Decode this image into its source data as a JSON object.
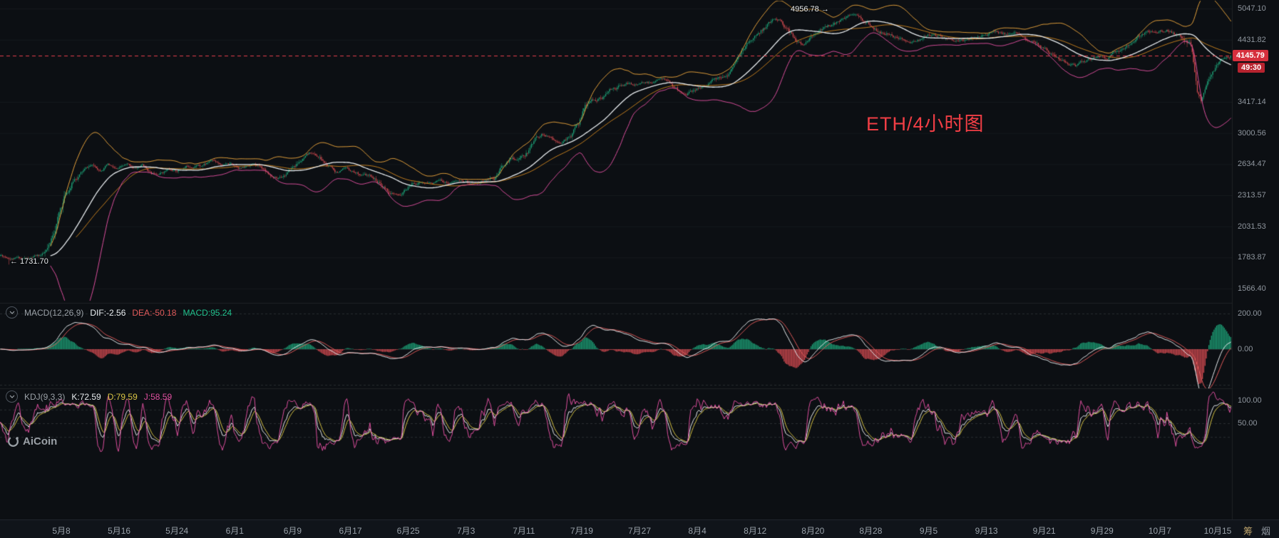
{
  "meta": {
    "watermark": "ETH/4小时图",
    "logo_text": "AiCoin"
  },
  "price_axis": {
    "labels": [
      "5047.10",
      "4431.82",
      "3417.14",
      "3000.56",
      "2634.47",
      "2313.57",
      "2031.53",
      "1783.87",
      "1566.40"
    ],
    "current_price": "4145.79",
    "countdown": "49:30"
  },
  "annotations": {
    "high_label": "4956.78 →",
    "low_label": "← 1731.70"
  },
  "indicators": {
    "macd": {
      "title": "MACD(12,26,9)",
      "dif": "DIF:-2.56",
      "dea": "DEA:-50.18",
      "macd": "MACD:95.24",
      "axis_labels": [
        "200.00",
        "0.00"
      ]
    },
    "kdj": {
      "title": "KDJ(9,3,3)",
      "k": "K:72.59",
      "d": "D:79.59",
      "j": "J:58.59",
      "axis_labels": [
        "100.00",
        "50.00"
      ]
    }
  },
  "toolbar": {
    "items": [
      "筹",
      "烟"
    ]
  },
  "colors": {
    "up": "#1ea97c",
    "down": "#df4e54",
    "boll_up": "#e6a23c",
    "boll_ma": "#c9821f",
    "boll_mid": "#e8ecef",
    "boll_low": "#dd4f9e",
    "macd_dif": "#e8ecef",
    "macd_dea": "#e05a5a",
    "hist_up": "#1ea97c",
    "hist_down": "#df4e54",
    "kdj_k": "#e8ecef",
    "kdj_d": "#d9c544",
    "kdj_j": "#dd4f9e",
    "accent_red": "#e8434f",
    "grid": "rgba(154,160,166,0.08)",
    "axis_text": "#8f969e"
  },
  "chart_data": {
    "type": "candlestick",
    "symbol": "ETH",
    "interval": "4小时",
    "scale": "log",
    "y_ticks": [
      5047.1,
      4431.82,
      3417.14,
      3000.56,
      2634.47,
      2313.57,
      2031.53,
      1783.87,
      1566.4
    ],
    "x_tick_labels": [
      "5月8",
      "5月16",
      "5月24",
      "6月1",
      "6月9",
      "6月17",
      "6月25",
      "7月3",
      "7月11",
      "7月19",
      "7月27",
      "8月4",
      "8月12",
      "8月20",
      "8月28",
      "9月5",
      "9月13",
      "9月21",
      "9月29",
      "10月7",
      "10月15"
    ],
    "candles": 960,
    "last_close": 4145.79,
    "high_annotation": {
      "price": 4956.78,
      "x_frac": 0.693
    },
    "low_annotation": {
      "price": 1731.7,
      "x_frac": 0.007
    },
    "overlays": [
      "BOLL-upper",
      "MA",
      "BOLL-mid",
      "BOLL-lower"
    ],
    "macd_latest": {
      "dif": -2.56,
      "dea": -50.18,
      "macd": 95.24
    },
    "kdj_latest": {
      "k": 72.59,
      "d": 79.59,
      "j": 58.59
    },
    "price_path": [
      [
        0.0,
        1800
      ],
      [
        0.012,
        1785
      ],
      [
        0.025,
        1775
      ],
      [
        0.036,
        1795
      ],
      [
        0.041,
        1845
      ],
      [
        0.046,
        2050
      ],
      [
        0.053,
        2300
      ],
      [
        0.06,
        2480
      ],
      [
        0.066,
        2560
      ],
      [
        0.074,
        2620
      ],
      [
        0.081,
        2575
      ],
      [
        0.087,
        2640
      ],
      [
        0.095,
        2560
      ],
      [
        0.103,
        2600
      ],
      [
        0.11,
        2565
      ],
      [
        0.116,
        2615
      ],
      [
        0.123,
        2520
      ],
      [
        0.13,
        2555
      ],
      [
        0.136,
        2590
      ],
      [
        0.143,
        2560
      ],
      [
        0.152,
        2615
      ],
      [
        0.162,
        2650
      ],
      [
        0.172,
        2700
      ],
      [
        0.18,
        2660
      ],
      [
        0.189,
        2635
      ],
      [
        0.198,
        2610
      ],
      [
        0.205,
        2650
      ],
      [
        0.212,
        2595
      ],
      [
        0.218,
        2545
      ],
      [
        0.225,
        2500
      ],
      [
        0.233,
        2560
      ],
      [
        0.239,
        2625
      ],
      [
        0.246,
        2690
      ],
      [
        0.253,
        2740
      ],
      [
        0.259,
        2695
      ],
      [
        0.266,
        2600
      ],
      [
        0.272,
        2540
      ],
      [
        0.279,
        2560
      ],
      [
        0.287,
        2540
      ],
      [
        0.295,
        2515
      ],
      [
        0.303,
        2480
      ],
      [
        0.311,
        2400
      ],
      [
        0.317,
        2335
      ],
      [
        0.324,
        2290
      ],
      [
        0.329,
        2345
      ],
      [
        0.335,
        2420
      ],
      [
        0.341,
        2450
      ],
      [
        0.348,
        2430
      ],
      [
        0.356,
        2450
      ],
      [
        0.364,
        2440
      ],
      [
        0.372,
        2460
      ],
      [
        0.38,
        2445
      ],
      [
        0.388,
        2455
      ],
      [
        0.395,
        2485
      ],
      [
        0.402,
        2525
      ],
      [
        0.409,
        2625
      ],
      [
        0.415,
        2700
      ],
      [
        0.422,
        2720
      ],
      [
        0.429,
        2805
      ],
      [
        0.435,
        2950
      ],
      [
        0.44,
        3010
      ],
      [
        0.446,
        2955
      ],
      [
        0.451,
        2900
      ],
      [
        0.458,
        2925
      ],
      [
        0.464,
        3005
      ],
      [
        0.47,
        3150
      ],
      [
        0.474,
        3330
      ],
      [
        0.479,
        3410
      ],
      [
        0.484,
        3445
      ],
      [
        0.491,
        3505
      ],
      [
        0.497,
        3585
      ],
      [
        0.503,
        3645
      ],
      [
        0.508,
        3685
      ],
      [
        0.514,
        3660
      ],
      [
        0.521,
        3700
      ],
      [
        0.528,
        3680
      ],
      [
        0.534,
        3705
      ],
      [
        0.54,
        3720
      ],
      [
        0.545,
        3675
      ],
      [
        0.55,
        3575
      ],
      [
        0.556,
        3520
      ],
      [
        0.561,
        3560
      ],
      [
        0.566,
        3625
      ],
      [
        0.573,
        3680
      ],
      [
        0.579,
        3725
      ],
      [
        0.586,
        3765
      ],
      [
        0.593,
        3905
      ],
      [
        0.599,
        4055
      ],
      [
        0.606,
        4255
      ],
      [
        0.612,
        4455
      ],
      [
        0.619,
        4610
      ],
      [
        0.624,
        4730
      ],
      [
        0.628,
        4800
      ],
      [
        0.632,
        4820
      ],
      [
        0.636,
        4700
      ],
      [
        0.642,
        4530
      ],
      [
        0.647,
        4400
      ],
      [
        0.652,
        4320
      ],
      [
        0.657,
        4420
      ],
      [
        0.664,
        4540
      ],
      [
        0.671,
        4650
      ],
      [
        0.677,
        4750
      ],
      [
        0.684,
        4850
      ],
      [
        0.69,
        4925
      ],
      [
        0.693,
        4950
      ],
      [
        0.698,
        4870
      ],
      [
        0.704,
        4775
      ],
      [
        0.709,
        4695
      ],
      [
        0.714,
        4615
      ],
      [
        0.72,
        4555
      ],
      [
        0.726,
        4480
      ],
      [
        0.733,
        4420
      ],
      [
        0.739,
        4385
      ],
      [
        0.746,
        4445
      ],
      [
        0.753,
        4525
      ],
      [
        0.758,
        4560
      ],
      [
        0.763,
        4500
      ],
      [
        0.769,
        4440
      ],
      [
        0.775,
        4405
      ],
      [
        0.782,
        4425
      ],
      [
        0.788,
        4485
      ],
      [
        0.795,
        4545
      ],
      [
        0.802,
        4605
      ],
      [
        0.807,
        4630
      ],
      [
        0.812,
        4575
      ],
      [
        0.817,
        4520
      ],
      [
        0.824,
        4475
      ],
      [
        0.831,
        4445
      ],
      [
        0.837,
        4395
      ],
      [
        0.843,
        4310
      ],
      [
        0.848,
        4225
      ],
      [
        0.855,
        4150
      ],
      [
        0.861,
        4060
      ],
      [
        0.868,
        4000
      ],
      [
        0.873,
        3975
      ],
      [
        0.878,
        4020
      ],
      [
        0.885,
        4080
      ],
      [
        0.891,
        4120
      ],
      [
        0.897,
        4105
      ],
      [
        0.903,
        4160
      ],
      [
        0.91,
        4255
      ],
      [
        0.917,
        4385
      ],
      [
        0.923,
        4485
      ],
      [
        0.93,
        4555
      ],
      [
        0.935,
        4605
      ],
      [
        0.942,
        4640
      ],
      [
        0.947,
        4655
      ],
      [
        0.952,
        4615
      ],
      [
        0.958,
        4560
      ],
      [
        0.962,
        4505
      ],
      [
        0.965,
        4430
      ],
      [
        0.968,
        4260
      ],
      [
        0.97,
        3950
      ],
      [
        0.972,
        3680
      ],
      [
        0.975,
        3500
      ],
      [
        0.978,
        3690
      ],
      [
        0.981,
        3855
      ],
      [
        0.984,
        3950
      ],
      [
        0.987,
        4050
      ],
      [
        0.991,
        4105
      ],
      [
        0.995,
        4145.79
      ],
      [
        1.0,
        4145.79
      ]
    ]
  }
}
